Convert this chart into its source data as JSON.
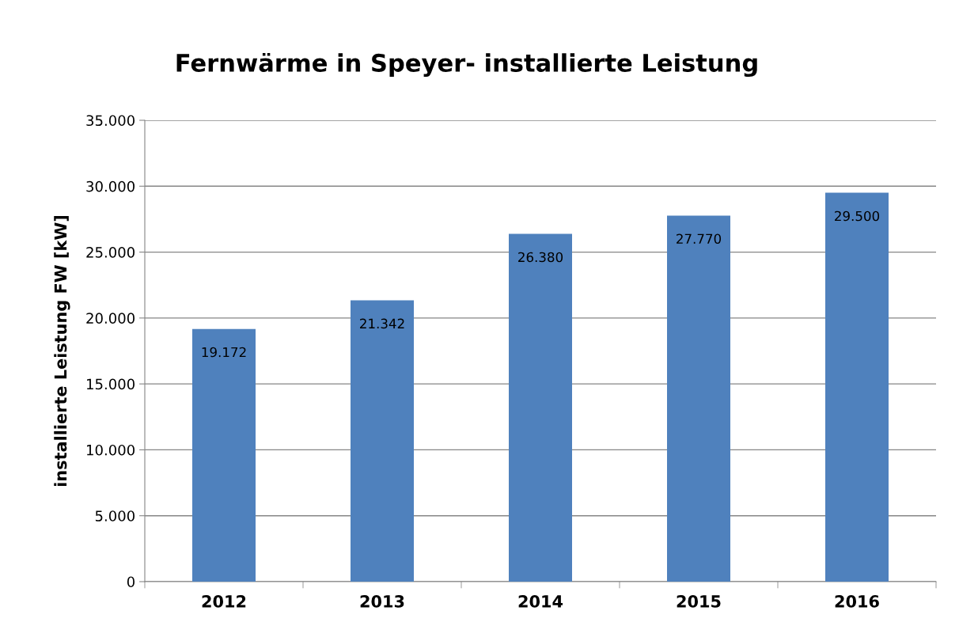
{
  "chart_data": {
    "type": "bar",
    "title": "Fernwärme in Speyer- installierte Leistung",
    "ylabel": "installierte Leistung FW [kW]",
    "categories": [
      "2012",
      "2013",
      "2014",
      "2015",
      "2016"
    ],
    "values": [
      19172,
      21342,
      26380,
      27770,
      29500
    ],
    "value_labels": [
      "19.172",
      "21.342",
      "26.380",
      "27.770",
      "29.500"
    ],
    "color": "#4f81bd",
    "ylim": [
      0,
      35000
    ],
    "yticks": [
      0,
      {
        "value": 5000,
        "label": "5.000"
      },
      {
        "value": 10000,
        "label": "10.000"
      },
      {
        "value": 15000,
        "label": "15.000"
      },
      {
        "value": 20000,
        "label": "20.000"
      },
      {
        "value": 25000,
        "label": "25.000"
      },
      {
        "value": 30000,
        "label": "30.000"
      },
      {
        "value": 35000,
        "label": "35.000"
      }
    ],
    "grid": "y",
    "legend": false
  }
}
